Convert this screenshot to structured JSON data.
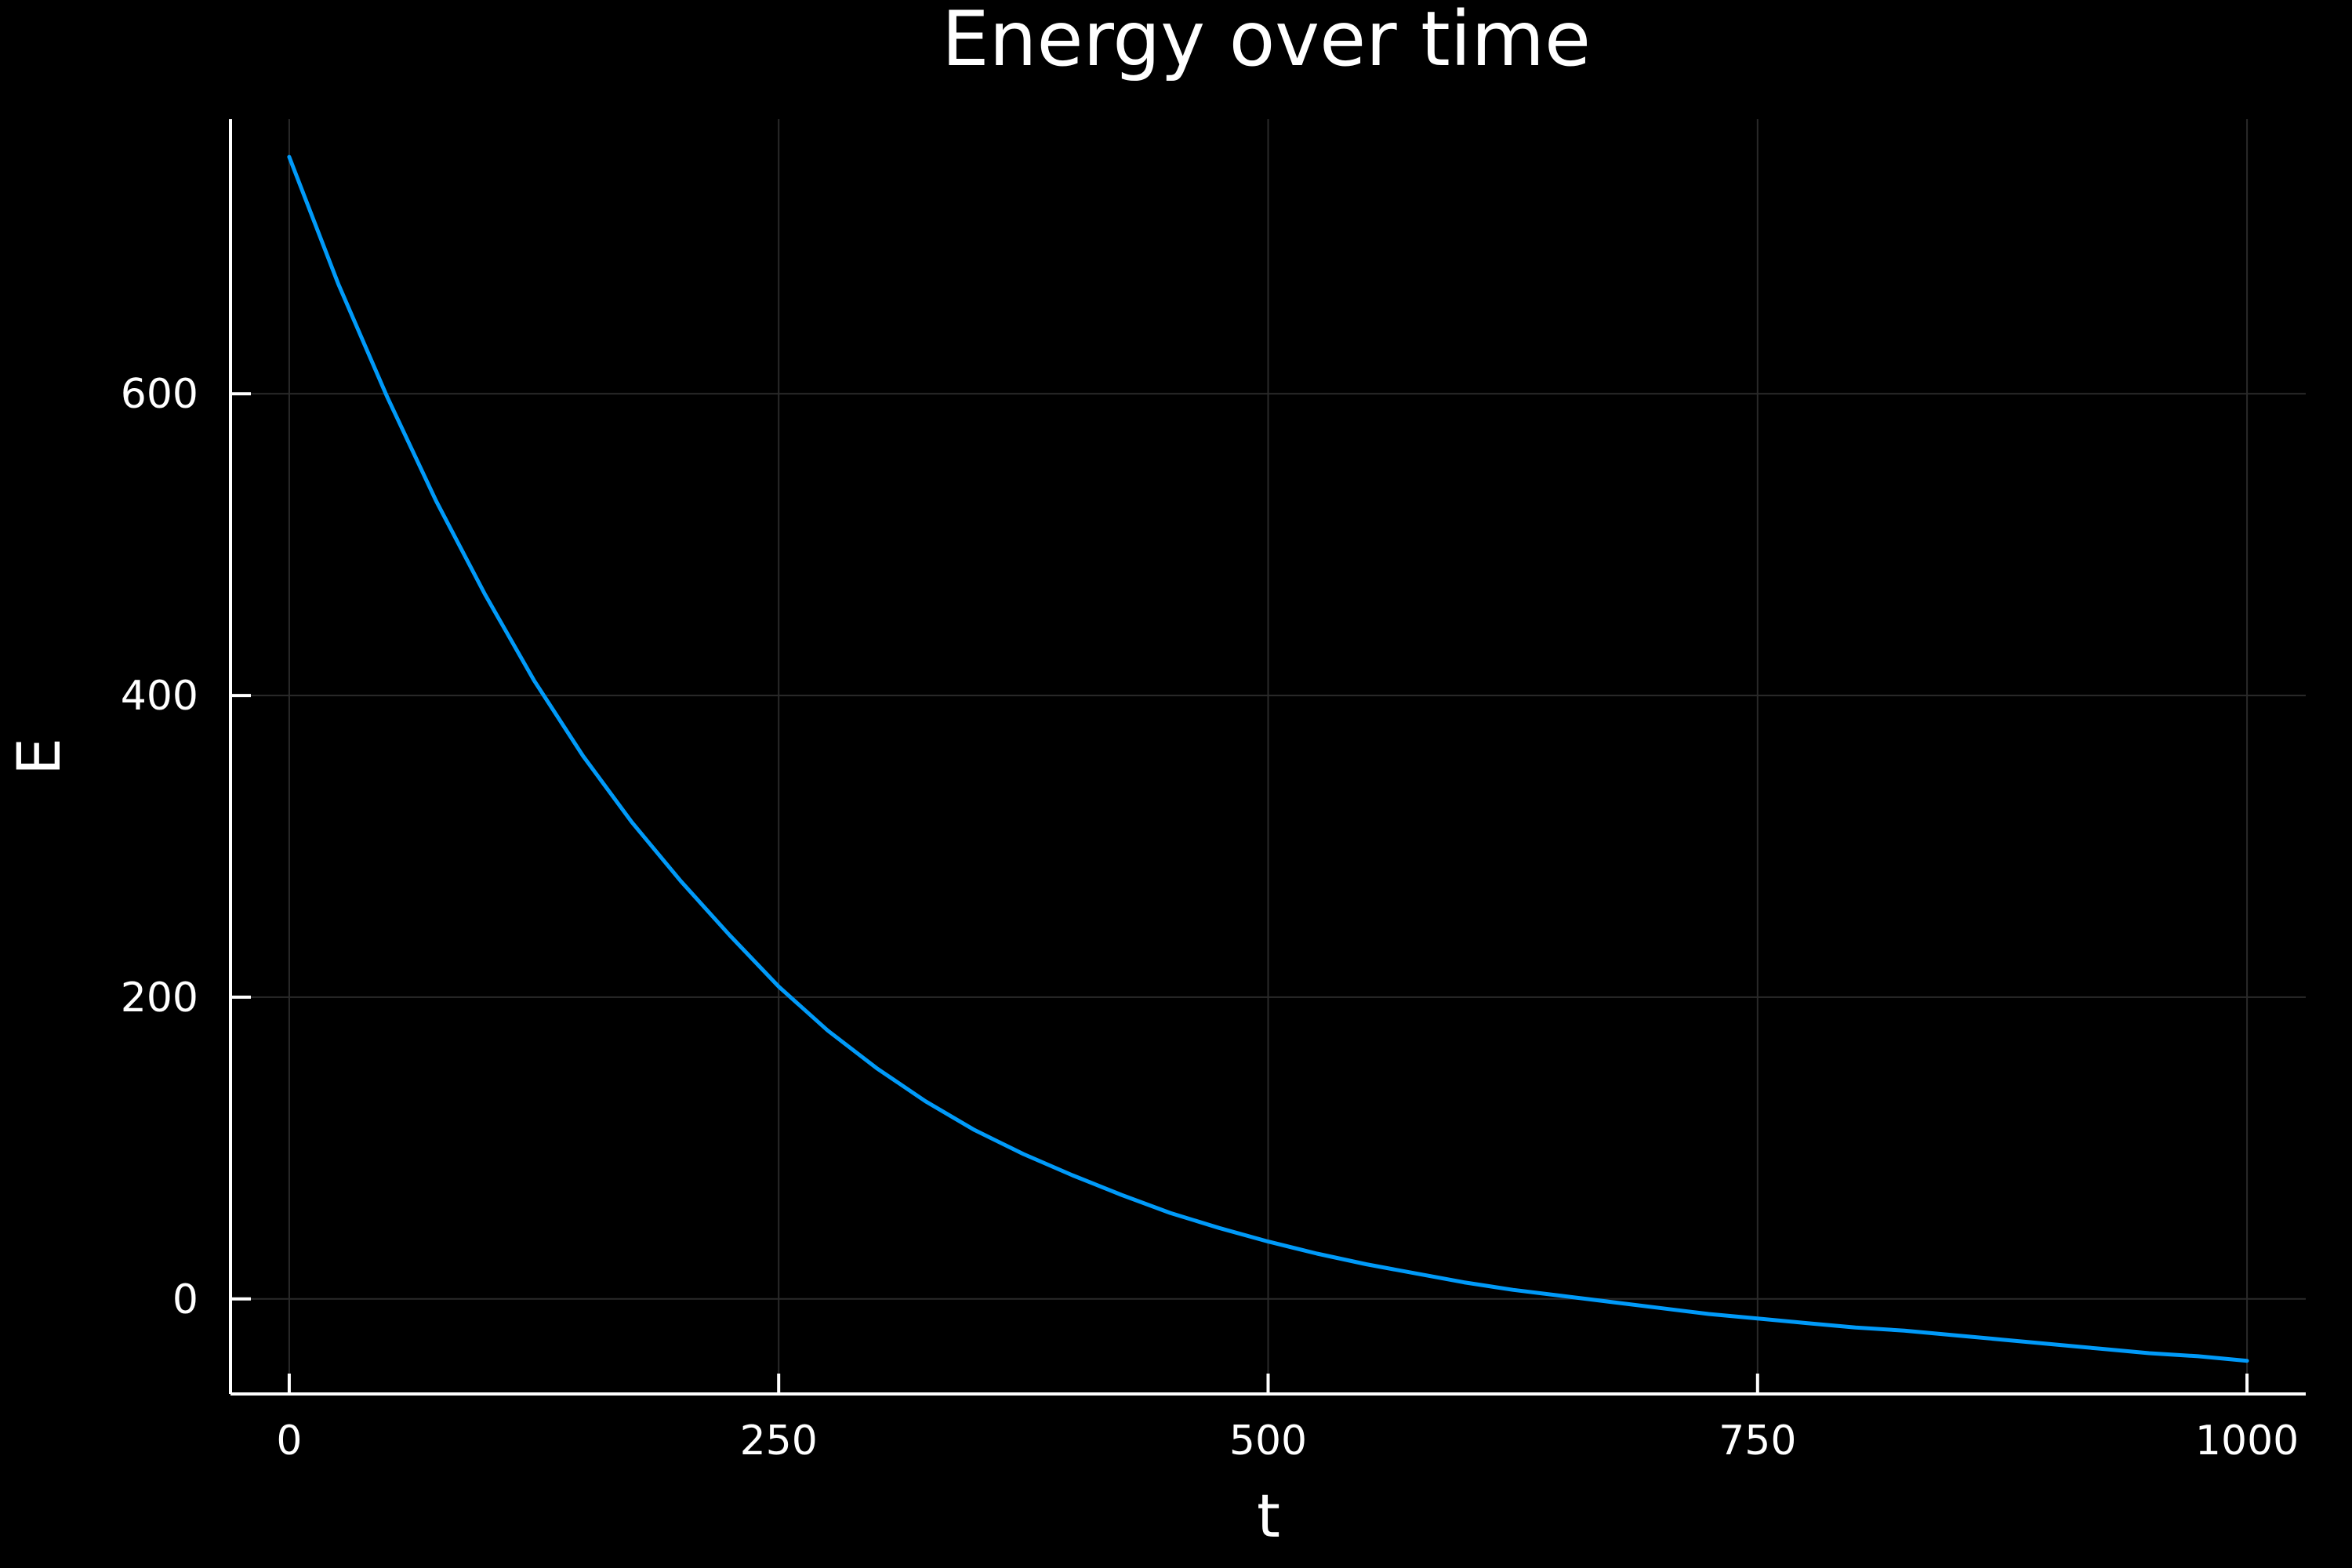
{
  "chart_data": {
    "type": "line",
    "title": "Energy over time",
    "xlabel": "t",
    "ylabel": "E",
    "xlim": [
      -30,
      1030
    ],
    "ylim": [
      -63,
      782
    ],
    "x_ticks": [
      0,
      250,
      500,
      750,
      1000
    ],
    "y_ticks": [
      0,
      200,
      400,
      600
    ],
    "grid": true,
    "legend": "none",
    "colors": {
      "background": "#000000",
      "axis": "#ffffff",
      "grid": "#2a2a2a",
      "text": "#ffffff",
      "series": "#009af9"
    },
    "series": [
      {
        "x": [
          0,
          25,
          50,
          75,
          100,
          125,
          150,
          175,
          200,
          225,
          250,
          275,
          300,
          325,
          350,
          375,
          400,
          425,
          450,
          475,
          500,
          525,
          550,
          575,
          600,
          625,
          650,
          675,
          700,
          725,
          750,
          775,
          800,
          825,
          850,
          875,
          900,
          925,
          950,
          975,
          1000
        ],
        "y": [
          757,
          673,
          598,
          529,
          467,
          410,
          360,
          316,
          277,
          241,
          207,
          178,
          153,
          131,
          112,
          96,
          82,
          69,
          57,
          47,
          38,
          30,
          23,
          17,
          11,
          6,
          2,
          -2,
          -6,
          -10,
          -13,
          -16,
          -19,
          -21,
          -24,
          -27,
          -30,
          -33,
          -36,
          -38,
          -41
        ]
      }
    ]
  }
}
